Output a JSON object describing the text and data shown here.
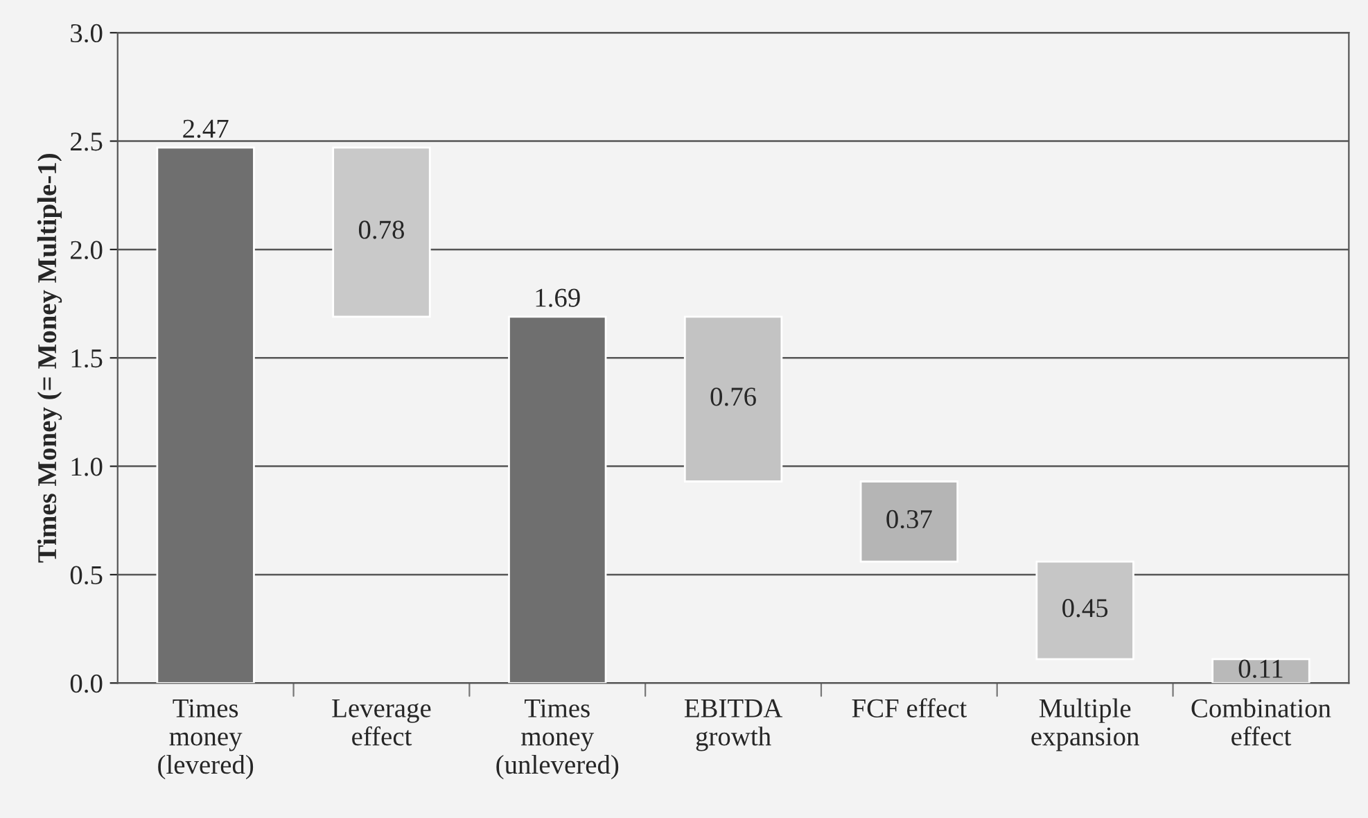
{
  "chart_data": {
    "type": "bar",
    "ylabel": "Times Money (= Money Multiple-1)",
    "categories": [
      "Times\nmoney\n(levered)",
      "Leverage\neffect",
      "Times\nmoney\n(unlevered)",
      "EBITDA\ngrowth",
      "FCF effect",
      "Multiple\nexpansion",
      "Combination\neffect"
    ],
    "values": [
      2.47,
      0.78,
      1.69,
      0.76,
      0.37,
      0.45,
      0.11
    ],
    "base": [
      0,
      1.69,
      0,
      0.93,
      0.56,
      0.11,
      0
    ],
    "colors": [
      "#6f6f6f",
      "#c9c9c9",
      "#6f6f6f",
      "#c3c3c3",
      "#b5b5b5",
      "#c6c6c6",
      "#b9b9b9"
    ],
    "ylim": [
      0,
      3.0
    ],
    "yticks": [
      {
        "value": 0,
        "label": "0.0"
      },
      {
        "value": 0.5,
        "label": "0.5"
      },
      {
        "value": 1.0,
        "label": "1.0"
      },
      {
        "value": 1.5,
        "label": "1.5"
      },
      {
        "value": 2.0,
        "label": "2.0"
      },
      {
        "value": 2.5,
        "label": "2.5"
      },
      {
        "value": 3.0,
        "label": "3.0"
      }
    ],
    "grid": "y",
    "data_labels": true
  }
}
